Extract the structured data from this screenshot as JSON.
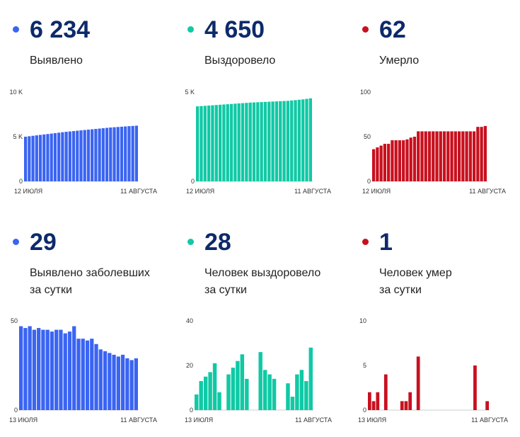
{
  "panels": [
    {
      "value": "6 234",
      "label": [
        "Выявлено"
      ],
      "color": "#3a64f2"
    },
    {
      "value": "4 650",
      "label": [
        "Выздоровело"
      ],
      "color": "#10c9a5"
    },
    {
      "value": "62",
      "label": [
        "Умерло"
      ],
      "color": "#c8101e"
    },
    {
      "value": "29",
      "label": [
        "Выявлено заболевших",
        "за сутки"
      ],
      "color": "#3a64f2"
    },
    {
      "value": "28",
      "label": [
        "Человек выздоровело",
        "за сутки"
      ],
      "color": "#10c9a5"
    },
    {
      "value": "1",
      "label": [
        "Человек умер",
        "за сутки"
      ],
      "color": "#c8101e"
    }
  ],
  "chart_data": [
    {
      "type": "bar",
      "ylim": [
        0,
        10000
      ],
      "yticks": [
        "10 K",
        "5 K",
        "0"
      ],
      "xlabels": [
        "12 ИЮЛЯ",
        "11 АВГУСТА"
      ],
      "values": [
        5000,
        5050,
        5100,
        5150,
        5200,
        5250,
        5300,
        5350,
        5400,
        5450,
        5500,
        5550,
        5590,
        5630,
        5670,
        5710,
        5750,
        5790,
        5830,
        5870,
        5910,
        5950,
        5990,
        6030,
        6060,
        6090,
        6120,
        6150,
        6180,
        6205,
        6234
      ]
    },
    {
      "type": "bar",
      "ylim": [
        0,
        5000
      ],
      "yticks": [
        "5 K",
        "0"
      ],
      "xlabels": [
        "12 ИЮЛЯ",
        "11 АВГУСТА"
      ],
      "values": [
        4200,
        4215,
        4230,
        4245,
        4260,
        4275,
        4290,
        4305,
        4320,
        4335,
        4350,
        4365,
        4380,
        4395,
        4410,
        4420,
        4430,
        4440,
        4450,
        4460,
        4470,
        4480,
        4490,
        4500,
        4510,
        4530,
        4550,
        4570,
        4590,
        4620,
        4650
      ]
    },
    {
      "type": "bar",
      "ylim": [
        0,
        100
      ],
      "yticks": [
        "100",
        "50",
        "0"
      ],
      "xlabels": [
        "12 ИЮЛЯ",
        "11 АВГУСТА"
      ],
      "values": [
        36,
        38,
        40,
        42,
        42,
        46,
        46,
        46,
        46,
        47,
        49,
        50,
        56,
        56,
        56,
        56,
        56,
        56,
        56,
        56,
        56,
        56,
        56,
        56,
        56,
        56,
        56,
        56,
        61,
        61,
        62
      ]
    },
    {
      "type": "bar",
      "ylim": [
        0,
        50
      ],
      "yticks": [
        "50",
        "0"
      ],
      "xlabels": [
        "13 ИЮЛЯ",
        "11 АВГУСТА"
      ],
      "values": [
        47,
        46,
        47,
        45,
        46,
        45,
        45,
        44,
        45,
        45,
        43,
        44,
        47,
        40,
        40,
        39,
        40,
        37,
        34,
        33,
        32,
        31,
        30,
        31,
        29,
        28,
        29
      ]
    },
    {
      "type": "bar",
      "ylim": [
        0,
        40
      ],
      "yticks": [
        "40",
        "20",
        "0"
      ],
      "xlabels": [
        "13 ИЮЛЯ",
        "11 АВГУСТА"
      ],
      "values": [
        7,
        13,
        15,
        17,
        21,
        8,
        0,
        16,
        19,
        22,
        25,
        14,
        0,
        0,
        26,
        18,
        16,
        14,
        0,
        0,
        12,
        6,
        16,
        18,
        13,
        28
      ]
    },
    {
      "type": "bar",
      "ylim": [
        0,
        10
      ],
      "yticks": [
        "10",
        "5",
        "0"
      ],
      "xlabels": [
        "13 ИЮЛЯ",
        "11 АВГУСТА"
      ],
      "values": [
        2,
        1,
        2,
        0,
        4,
        0,
        0,
        0,
        1,
        1,
        2,
        0,
        6,
        0,
        0,
        0,
        0,
        0,
        0,
        0,
        0,
        0,
        0,
        0,
        0,
        0,
        5,
        0,
        0,
        1
      ]
    }
  ]
}
